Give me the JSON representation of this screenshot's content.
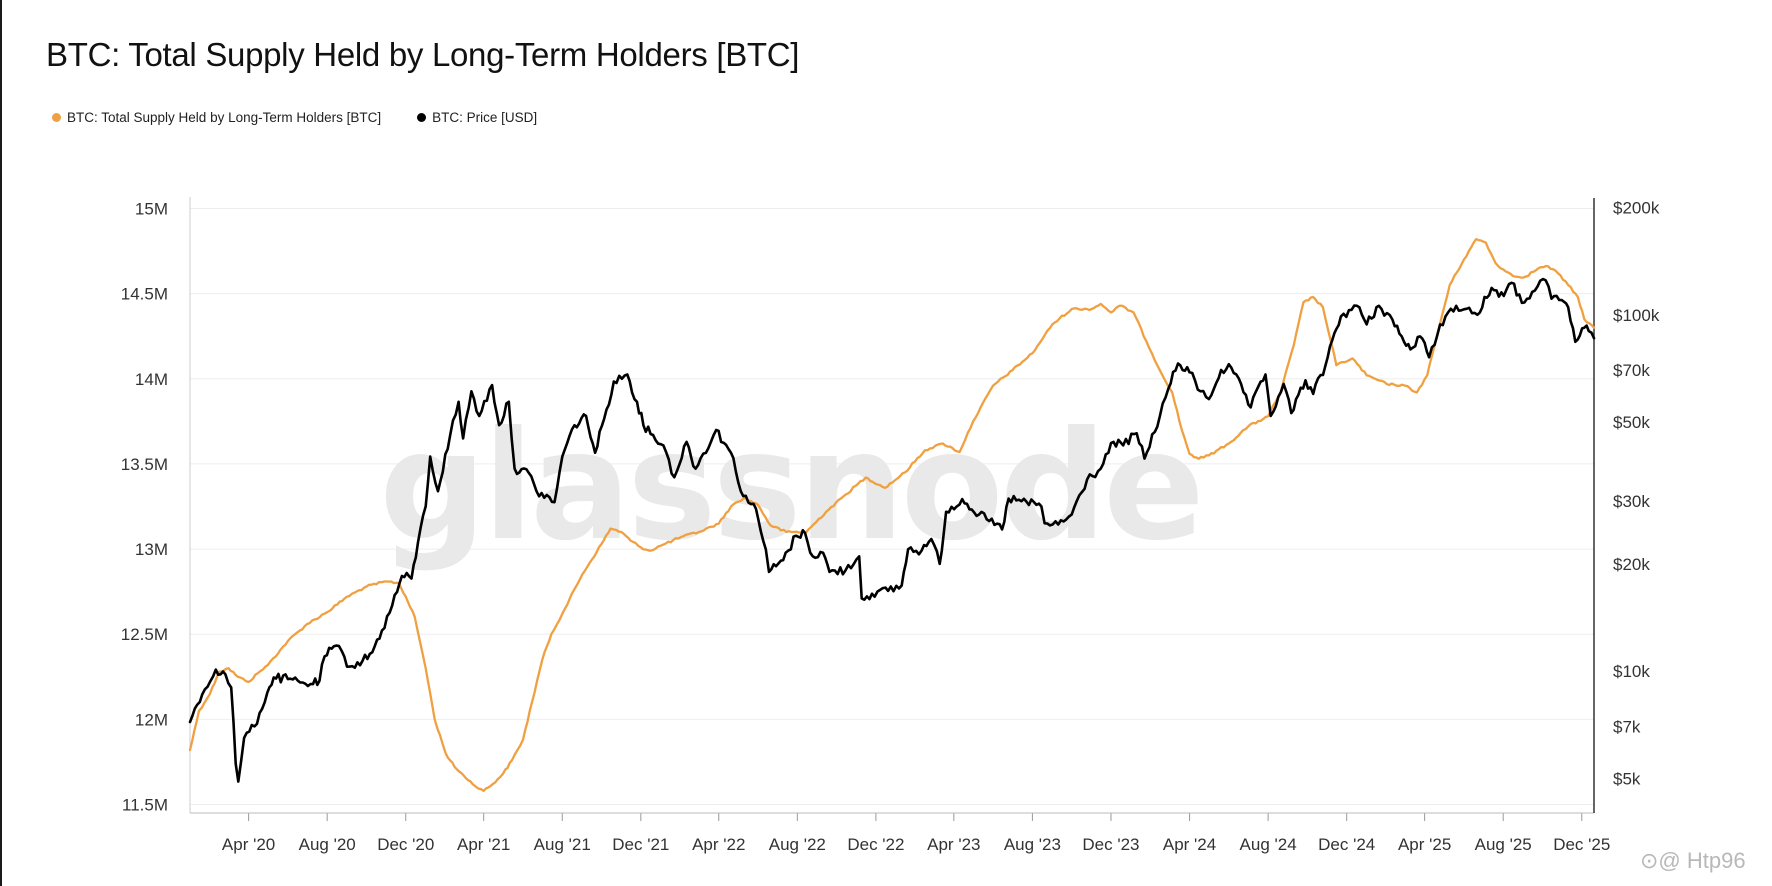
{
  "title": "BTC: Total Supply Held by Long-Term Holders [BTC]",
  "legend": [
    {
      "label": "BTC: Total Supply Held by Long-Term Holders [BTC]",
      "color": "#f0a040"
    },
    {
      "label": "BTC: Price [USD]",
      "color": "#000000"
    }
  ],
  "watermark": "glassnode",
  "footer": "⊙@ Htp96",
  "chart_data": {
    "type": "line",
    "title": "BTC: Total Supply Held by Long-Term Holders [BTC]",
    "x_ticks": [
      "Apr '20",
      "Aug '20",
      "Dec '20",
      "Apr '21",
      "Aug '21",
      "Dec '21",
      "Apr '22",
      "Aug '22",
      "Dec '22",
      "Apr '23",
      "Aug '23",
      "Dec '23",
      "Apr '24",
      "Aug '24",
      "Dec '24",
      "Apr '25",
      "Aug '25",
      "Dec '25"
    ],
    "x_range": [
      "2020-01-01",
      "2025-12-20"
    ],
    "y_left": {
      "ticks": [
        "11.5M",
        "12M",
        "12.5M",
        "13M",
        "13.5M",
        "14M",
        "14.5M",
        "15M"
      ],
      "range": [
        11.45,
        15.05
      ],
      "unit": "M BTC"
    },
    "y_right": {
      "ticks": [
        "$5k",
        "$7k",
        "$10k",
        "$20k",
        "$30k",
        "$50k",
        "$70k",
        "$100k",
        "$200k"
      ],
      "range": [
        4000,
        210000
      ],
      "scale": "log"
    },
    "grid": true,
    "series": [
      {
        "name": "BTC: Total Supply Held by Long-Term Holders [BTC]",
        "axis": "left",
        "color": "#f0a040",
        "points": [
          [
            "2020-01-01",
            11.82
          ],
          [
            "2020-01-15",
            12.05
          ],
          [
            "2020-02-01",
            12.15
          ],
          [
            "2020-02-15",
            12.28
          ],
          [
            "2020-03-01",
            12.3
          ],
          [
            "2020-03-15",
            12.25
          ],
          [
            "2020-04-01",
            12.22
          ],
          [
            "2020-04-15",
            12.27
          ],
          [
            "2020-05-01",
            12.32
          ],
          [
            "2020-06-01",
            12.46
          ],
          [
            "2020-07-01",
            12.56
          ],
          [
            "2020-08-01",
            12.63
          ],
          [
            "2020-09-01",
            12.72
          ],
          [
            "2020-10-01",
            12.78
          ],
          [
            "2020-11-01",
            12.81
          ],
          [
            "2020-11-20",
            12.8
          ],
          [
            "2020-12-01",
            12.72
          ],
          [
            "2020-12-15",
            12.6
          ],
          [
            "2021-01-01",
            12.3
          ],
          [
            "2021-01-15",
            12.0
          ],
          [
            "2021-02-01",
            11.8
          ],
          [
            "2021-02-15",
            11.72
          ],
          [
            "2021-03-01",
            11.67
          ],
          [
            "2021-03-15",
            11.62
          ],
          [
            "2021-04-01",
            11.58
          ],
          [
            "2021-04-15",
            11.62
          ],
          [
            "2021-05-01",
            11.68
          ],
          [
            "2021-05-15",
            11.76
          ],
          [
            "2021-06-01",
            11.88
          ],
          [
            "2021-06-15",
            12.1
          ],
          [
            "2021-07-01",
            12.35
          ],
          [
            "2021-07-15",
            12.5
          ],
          [
            "2021-08-01",
            12.62
          ],
          [
            "2021-09-01",
            12.85
          ],
          [
            "2021-10-01",
            13.03
          ],
          [
            "2021-10-15",
            13.12
          ],
          [
            "2021-11-01",
            13.1
          ],
          [
            "2021-11-15",
            13.05
          ],
          [
            "2021-12-01",
            13.01
          ],
          [
            "2021-12-15",
            12.99
          ],
          [
            "2022-01-01",
            13.02
          ],
          [
            "2022-02-01",
            13.07
          ],
          [
            "2022-03-01",
            13.1
          ],
          [
            "2022-04-01",
            13.15
          ],
          [
            "2022-04-20",
            13.25
          ],
          [
            "2022-05-10",
            13.3
          ],
          [
            "2022-06-01",
            13.26
          ],
          [
            "2022-06-20",
            13.14
          ],
          [
            "2022-07-15",
            13.1
          ],
          [
            "2022-08-15",
            13.1
          ],
          [
            "2022-09-15",
            13.22
          ],
          [
            "2022-10-15",
            13.32
          ],
          [
            "2022-11-15",
            13.42
          ],
          [
            "2022-12-15",
            13.36
          ],
          [
            "2023-01-15",
            13.45
          ],
          [
            "2023-02-15",
            13.58
          ],
          [
            "2023-03-15",
            13.62
          ],
          [
            "2023-04-10",
            13.57
          ],
          [
            "2023-05-01",
            13.75
          ],
          [
            "2023-06-01",
            13.96
          ],
          [
            "2023-07-01",
            14.05
          ],
          [
            "2023-08-01",
            14.15
          ],
          [
            "2023-09-01",
            14.32
          ],
          [
            "2023-10-01",
            14.41
          ],
          [
            "2023-11-01",
            14.41
          ],
          [
            "2023-11-15",
            14.44
          ],
          [
            "2023-12-01",
            14.39
          ],
          [
            "2023-12-15",
            14.43
          ],
          [
            "2024-01-05",
            14.39
          ],
          [
            "2024-01-25",
            14.22
          ],
          [
            "2024-02-15",
            14.05
          ],
          [
            "2024-03-05",
            13.92
          ],
          [
            "2024-03-20",
            13.7
          ],
          [
            "2024-04-01",
            13.56
          ],
          [
            "2024-04-15",
            13.53
          ],
          [
            "2024-05-01",
            13.55
          ],
          [
            "2024-06-01",
            13.62
          ],
          [
            "2024-07-01",
            13.72
          ],
          [
            "2024-08-01",
            13.78
          ],
          [
            "2024-08-20",
            13.92
          ],
          [
            "2024-09-10",
            14.2
          ],
          [
            "2024-09-25",
            14.45
          ],
          [
            "2024-10-10",
            14.48
          ],
          [
            "2024-10-25",
            14.42
          ],
          [
            "2024-11-15",
            14.08
          ],
          [
            "2024-12-10",
            14.12
          ],
          [
            "2025-01-01",
            14.02
          ],
          [
            "2025-02-01",
            13.97
          ],
          [
            "2025-03-01",
            13.96
          ],
          [
            "2025-03-20",
            13.92
          ],
          [
            "2025-04-05",
            14.02
          ],
          [
            "2025-04-20",
            14.25
          ],
          [
            "2025-05-10",
            14.55
          ],
          [
            "2025-06-01",
            14.7
          ],
          [
            "2025-06-20",
            14.82
          ],
          [
            "2025-07-05",
            14.8
          ],
          [
            "2025-07-20",
            14.68
          ],
          [
            "2025-08-05",
            14.63
          ],
          [
            "2025-08-20",
            14.6
          ],
          [
            "2025-09-05",
            14.6
          ],
          [
            "2025-09-25",
            14.65
          ],
          [
            "2025-10-10",
            14.66
          ],
          [
            "2025-10-25",
            14.62
          ],
          [
            "2025-11-10",
            14.55
          ],
          [
            "2025-11-25",
            14.48
          ],
          [
            "2025-12-05",
            14.35
          ],
          [
            "2025-12-20",
            14.3
          ]
        ]
      },
      {
        "name": "BTC: Price [USD]",
        "axis": "right",
        "color": "#000000",
        "points": [
          [
            "2020-01-01",
            7200
          ],
          [
            "2020-01-20",
            8600
          ],
          [
            "2020-02-10",
            10100
          ],
          [
            "2020-02-25",
            9800
          ],
          [
            "2020-03-05",
            9000
          ],
          [
            "2020-03-12",
            5500
          ],
          [
            "2020-03-16",
            4900
          ],
          [
            "2020-03-25",
            6500
          ],
          [
            "2020-04-10",
            7000
          ],
          [
            "2020-04-30",
            8700
          ],
          [
            "2020-05-10",
            9600
          ],
          [
            "2020-06-01",
            9500
          ],
          [
            "2020-06-20",
            9300
          ],
          [
            "2020-07-10",
            9200
          ],
          [
            "2020-07-20",
            9400
          ],
          [
            "2020-07-28",
            11000
          ],
          [
            "2020-08-15",
            11800
          ],
          [
            "2020-09-05",
            10300
          ],
          [
            "2020-09-25",
            10700
          ],
          [
            "2020-10-10",
            11300
          ],
          [
            "2020-10-25",
            13000
          ],
          [
            "2020-11-10",
            15300
          ],
          [
            "2020-11-25",
            18500
          ],
          [
            "2020-12-10",
            18200
          ],
          [
            "2020-12-20",
            23000
          ],
          [
            "2021-01-01",
            29000
          ],
          [
            "2021-01-08",
            40000
          ],
          [
            "2021-01-20",
            32000
          ],
          [
            "2021-02-08",
            46000
          ],
          [
            "2021-02-21",
            57000
          ],
          [
            "2021-02-28",
            45000
          ],
          [
            "2021-03-13",
            61000
          ],
          [
            "2021-03-25",
            52000
          ],
          [
            "2021-04-14",
            63500
          ],
          [
            "2021-04-25",
            49000
          ],
          [
            "2021-05-10",
            57000
          ],
          [
            "2021-05-19",
            37000
          ],
          [
            "2021-06-10",
            36000
          ],
          [
            "2021-06-22",
            32000
          ],
          [
            "2021-07-20",
            29800
          ],
          [
            "2021-08-01",
            40000
          ],
          [
            "2021-08-20",
            49000
          ],
          [
            "2021-09-07",
            52000
          ],
          [
            "2021-09-21",
            41000
          ],
          [
            "2021-10-05",
            51000
          ],
          [
            "2021-10-20",
            65000
          ],
          [
            "2021-11-10",
            68000
          ],
          [
            "2021-11-25",
            57000
          ],
          [
            "2021-12-05",
            49000
          ],
          [
            "2021-12-20",
            46000
          ],
          [
            "2022-01-05",
            43000
          ],
          [
            "2022-01-22",
            35000
          ],
          [
            "2022-02-10",
            44000
          ],
          [
            "2022-02-24",
            37000
          ],
          [
            "2022-03-28",
            47500
          ],
          [
            "2022-04-20",
            41000
          ],
          [
            "2022-05-09",
            31000
          ],
          [
            "2022-05-25",
            29500
          ],
          [
            "2022-06-13",
            22000
          ],
          [
            "2022-06-18",
            19000
          ],
          [
            "2022-07-10",
            20500
          ],
          [
            "2022-07-30",
            24000
          ],
          [
            "2022-08-13",
            24400
          ],
          [
            "2022-08-25",
            21000
          ],
          [
            "2022-09-10",
            21500
          ],
          [
            "2022-09-20",
            19000
          ],
          [
            "2022-10-15",
            19200
          ],
          [
            "2022-11-05",
            21000
          ],
          [
            "2022-11-09",
            16000
          ],
          [
            "2022-11-25",
            16500
          ],
          [
            "2022-12-20",
            16800
          ],
          [
            "2023-01-10",
            17400
          ],
          [
            "2023-01-20",
            22000
          ],
          [
            "2023-02-10",
            21800
          ],
          [
            "2023-02-25",
            23500
          ],
          [
            "2023-03-10",
            20000
          ],
          [
            "2023-03-20",
            28000
          ],
          [
            "2023-04-14",
            30400
          ],
          [
            "2023-05-10",
            27500
          ],
          [
            "2023-06-15",
            25000
          ],
          [
            "2023-06-25",
            30500
          ],
          [
            "2023-07-15",
            30000
          ],
          [
            "2023-08-15",
            29000
          ],
          [
            "2023-08-20",
            26000
          ],
          [
            "2023-09-10",
            25800
          ],
          [
            "2023-10-01",
            27500
          ],
          [
            "2023-10-25",
            34500
          ],
          [
            "2023-11-15",
            37000
          ],
          [
            "2023-12-05",
            44000
          ],
          [
            "2023-12-20",
            43000
          ],
          [
            "2024-01-10",
            46500
          ],
          [
            "2024-01-22",
            39500
          ],
          [
            "2024-02-15",
            52000
          ],
          [
            "2024-02-28",
            62000
          ],
          [
            "2024-03-14",
            73000
          ],
          [
            "2024-04-01",
            69000
          ],
          [
            "2024-04-18",
            61000
          ],
          [
            "2024-05-01",
            58000
          ],
          [
            "2024-05-20",
            70000
          ],
          [
            "2024-06-05",
            71000
          ],
          [
            "2024-07-05",
            55000
          ],
          [
            "2024-07-28",
            68000
          ],
          [
            "2024-08-05",
            52000
          ],
          [
            "2024-08-25",
            64000
          ],
          [
            "2024-09-06",
            53000
          ],
          [
            "2024-09-28",
            65500
          ],
          [
            "2024-10-10",
            60000
          ],
          [
            "2024-10-29",
            72000
          ],
          [
            "2024-11-12",
            89000
          ],
          [
            "2024-11-22",
            99000
          ],
          [
            "2024-12-17",
            106000
          ],
          [
            "2025-01-01",
            94000
          ],
          [
            "2025-01-20",
            106000
          ],
          [
            "2025-02-10",
            97000
          ],
          [
            "2025-02-28",
            84000
          ],
          [
            "2025-03-10",
            80000
          ],
          [
            "2025-03-25",
            87000
          ],
          [
            "2025-04-08",
            76000
          ],
          [
            "2025-04-25",
            94000
          ],
          [
            "2025-05-20",
            106000
          ],
          [
            "2025-06-05",
            104000
          ],
          [
            "2025-06-22",
            100000
          ],
          [
            "2025-07-14",
            119000
          ],
          [
            "2025-08-02",
            113000
          ],
          [
            "2025-08-14",
            123000
          ],
          [
            "2025-08-30",
            108000
          ],
          [
            "2025-09-15",
            116000
          ],
          [
            "2025-10-06",
            125000
          ],
          [
            "2025-10-15",
            111000
          ],
          [
            "2025-10-31",
            110000
          ],
          [
            "2025-11-10",
            105000
          ],
          [
            "2025-11-21",
            84000
          ],
          [
            "2025-12-05",
            92000
          ],
          [
            "2025-12-12",
            90000
          ],
          [
            "2025-12-20",
            86000
          ]
        ]
      }
    ]
  }
}
